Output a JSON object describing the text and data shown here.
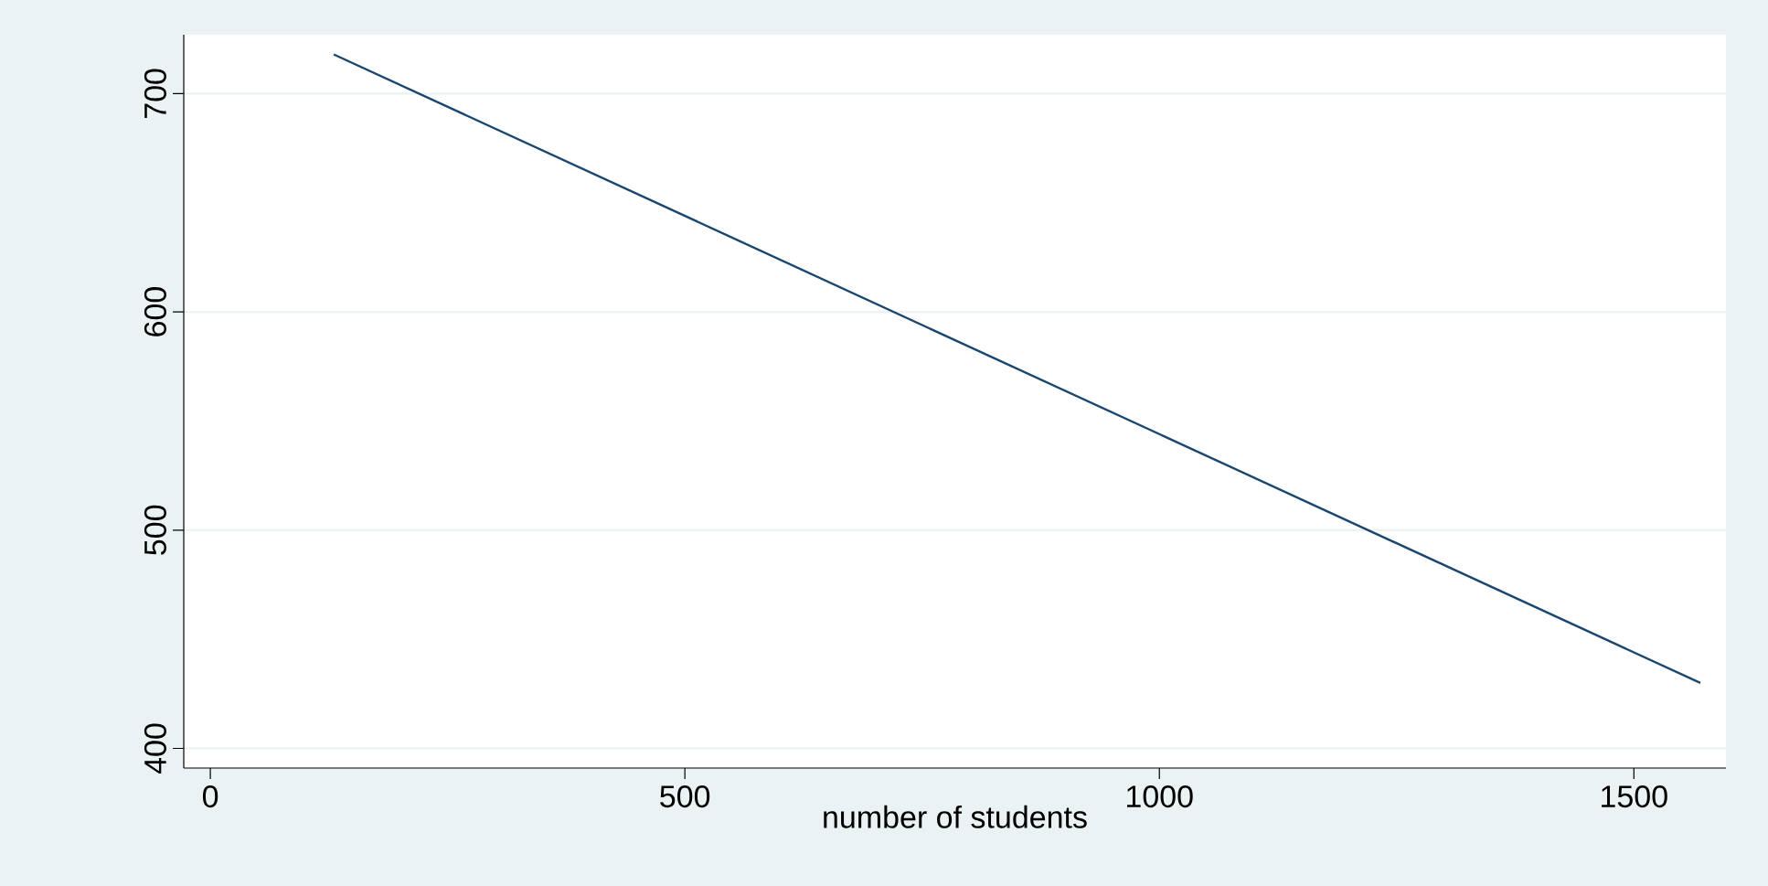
{
  "chart_data": {
    "type": "line",
    "xlabel": "number of students",
    "x": [
      130,
      1570
    ],
    "series": [
      {
        "color": "#1a476f",
        "values": [
          718,
          430
        ]
      }
    ],
    "xlim": [
      -28,
      1597
    ],
    "ylim": [
      391,
      727
    ],
    "xticks": [
      0,
      500,
      1000,
      1500
    ],
    "yticks": [
      400,
      500,
      600,
      700
    ],
    "grid": "y",
    "marker": "none",
    "line_style": "solid"
  }
}
